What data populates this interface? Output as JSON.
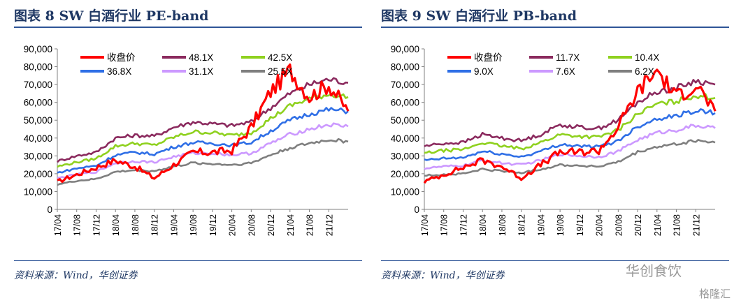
{
  "left": {
    "title": "图表 8   SW 白酒行业 PE-band",
    "source": "资料来源：Wind，华创证券"
  },
  "right": {
    "title": "图表 9   SW 白酒行业 PB-band",
    "source": "资料来源：Wind，华创证券"
  },
  "watermark": {
    "brand": "华创食饮",
    "site": "格隆汇"
  },
  "colors": {
    "close": "#ff0000",
    "band1": "#8b2a5e",
    "band2": "#8fd11f",
    "band3": "#2f6fe6",
    "band4": "#cc99ff",
    "band5": "#7f7f7f",
    "title": "#1f3864",
    "rule": "#2e5597"
  },
  "chart_data": [
    {
      "type": "line",
      "title": "SW 白酒行业 PE-band",
      "ylim": [
        0,
        90000
      ],
      "yticks": [
        "0",
        "10,000",
        "20,000",
        "30,000",
        "40,000",
        "50,000",
        "60,000",
        "70,000",
        "80,000",
        "90,000"
      ],
      "xticks": [
        "17/04",
        "17/08",
        "17/12",
        "18/04",
        "18/08",
        "18/12",
        "19/04",
        "19/08",
        "19/12",
        "20/04",
        "20/08",
        "20/12",
        "21/04",
        "21/08",
        "21/12"
      ],
      "x": [
        "17/04",
        "17/08",
        "17/12",
        "18/04",
        "18/08",
        "18/12",
        "19/04",
        "19/08",
        "19/12",
        "20/04",
        "20/08",
        "20/12",
        "21/04",
        "21/08",
        "21/12",
        "22/04"
      ],
      "series": [
        {
          "name": "收盘价",
          "color": "#ff0000",
          "values": [
            15500,
            19500,
            23500,
            27500,
            24000,
            17500,
            25000,
            32000,
            32000,
            33000,
            46000,
            66000,
            78000,
            63000,
            70000,
            55000
          ]
        },
        {
          "name": "48.1X",
          "color": "#8b2a5e",
          "values": [
            27000,
            30000,
            32000,
            40000,
            41500,
            41000,
            46000,
            49000,
            48000,
            47000,
            49000,
            57000,
            65000,
            70000,
            73000,
            71000
          ]
        },
        {
          "name": "42.5X",
          "color": "#8fd11f",
          "values": [
            24000,
            26500,
            28500,
            35500,
            37000,
            36000,
            40500,
            43500,
            43000,
            41500,
            43000,
            51000,
            58000,
            62000,
            64500,
            63000
          ]
        },
        {
          "name": "36.8X",
          "color": "#2f6fe6",
          "values": [
            20500,
            23000,
            24500,
            30500,
            32000,
            31000,
            35000,
            37500,
            37000,
            36000,
            37500,
            44000,
            50000,
            53500,
            56000,
            55000
          ]
        },
        {
          "name": "31.1X",
          "color": "#cc99ff",
          "values": [
            17500,
            19500,
            21000,
            26000,
            27000,
            26500,
            29500,
            31500,
            31500,
            30500,
            31500,
            37000,
            42000,
            45000,
            47500,
            46500
          ]
        },
        {
          "name": "25.5X",
          "color": "#7f7f7f",
          "values": [
            14000,
            16000,
            17000,
            21000,
            22000,
            21500,
            24000,
            26000,
            25500,
            25000,
            26000,
            30500,
            34500,
            37000,
            39000,
            38000
          ]
        }
      ],
      "legend_position": "top"
    },
    {
      "type": "line",
      "title": "SW 白酒行业 PB-band",
      "ylim": [
        0,
        90000
      ],
      "yticks": [
        "0",
        "10,000",
        "20,000",
        "30,000",
        "40,000",
        "50,000",
        "60,000",
        "70,000",
        "80,000",
        "90,000"
      ],
      "xticks": [
        "17/04",
        "17/08",
        "17/12",
        "18/04",
        "18/08",
        "18/12",
        "19/04",
        "19/08",
        "19/12",
        "20/04",
        "20/08",
        "20/12",
        "21/04",
        "21/08",
        "21/12"
      ],
      "x": [
        "17/04",
        "17/08",
        "17/12",
        "18/04",
        "18/08",
        "18/12",
        "19/04",
        "19/08",
        "19/12",
        "20/04",
        "20/08",
        "20/12",
        "21/04",
        "21/08",
        "21/12",
        "22/04"
      ],
      "series": [
        {
          "name": "收盘价",
          "color": "#ff0000",
          "values": [
            15500,
            19500,
            23500,
            27500,
            24000,
            17500,
            25000,
            32000,
            32000,
            33000,
            46000,
            66000,
            78000,
            63000,
            70000,
            55000
          ]
        },
        {
          "name": "11.7X",
          "color": "#8b2a5e",
          "values": [
            35500,
            37000,
            37500,
            42000,
            40000,
            38500,
            42000,
            47500,
            46000,
            45500,
            50000,
            60000,
            66000,
            68000,
            72000,
            70000
          ]
        },
        {
          "name": "10.4X",
          "color": "#8fd11f",
          "values": [
            31500,
            33000,
            33500,
            37500,
            35500,
            34000,
            37500,
            42000,
            41000,
            40500,
            44500,
            53500,
            59000,
            60500,
            64000,
            62500
          ]
        },
        {
          "name": "9.0X",
          "color": "#2f6fe6",
          "values": [
            27500,
            28500,
            29000,
            32500,
            31000,
            29500,
            32500,
            36500,
            35500,
            35000,
            38500,
            46500,
            51000,
            52500,
            55500,
            54000
          ]
        },
        {
          "name": "7.6X",
          "color": "#cc99ff",
          "values": [
            23000,
            24000,
            24500,
            27500,
            26000,
            25000,
            27500,
            31000,
            30000,
            29500,
            32500,
            39000,
            43000,
            44500,
            47000,
            45500
          ]
        },
        {
          "name": "6.2X",
          "color": "#7f7f7f",
          "values": [
            19000,
            19500,
            20000,
            22500,
            21500,
            20500,
            22500,
            25000,
            24500,
            24000,
            26500,
            32000,
            35000,
            36500,
            38500,
            37500
          ]
        }
      ],
      "legend_position": "top"
    }
  ]
}
